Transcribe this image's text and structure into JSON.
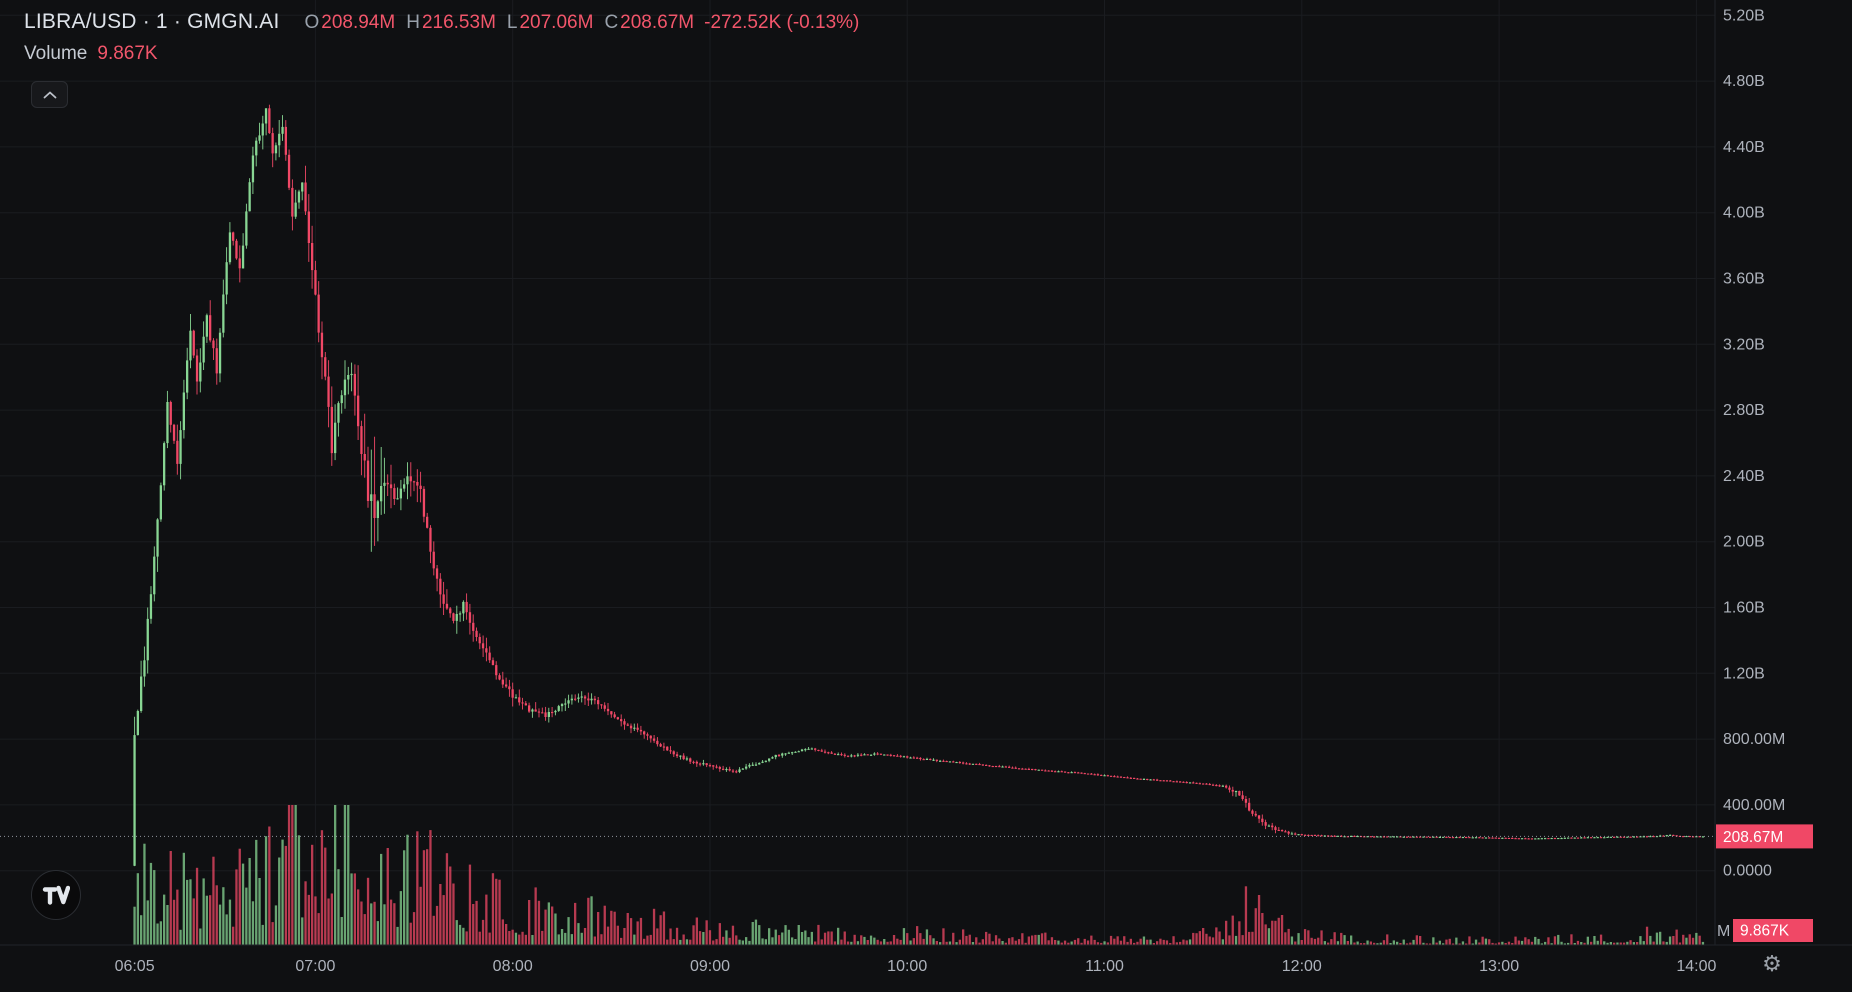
{
  "header": {
    "title": "LIBRA/USD · 1 · GMGN.AI",
    "o_label": "O",
    "o_value": "208.94M",
    "h_label": "H",
    "h_value": "216.53M",
    "l_label": "L",
    "l_value": "207.06M",
    "c_label": "C",
    "c_value": "208.67M",
    "change": "-272.52K (-0.13%)",
    "volume_label": "Volume",
    "volume_value": "9.867K"
  },
  "axis": {
    "price_label": "208.67M",
    "volume_label": "9.867K",
    "volume_unit": "M"
  },
  "icons": {
    "settings": "⚙"
  },
  "colors": {
    "up": "#88d693",
    "down": "#f04866",
    "red_text": "#f2566b",
    "bg": "#0f1012",
    "grid": "#1a1c20",
    "axis_text": "#aeb3bc",
    "separator": "#212429",
    "last_price_line": "#a8adb6",
    "label_text": "#ffffff"
  },
  "chart_data": {
    "type": "candlestick",
    "title": "LIBRA/USD 1-minute market cap candlestick chart with volume (GMGN.AI)",
    "interval": "1",
    "current_ohlc": {
      "open_m": 208.94,
      "high_m": 216.53,
      "low_m": 207.06,
      "close_m": 208.67,
      "change": "-272.52K",
      "change_pct": "-0.13%"
    },
    "current_volume": "9.867K",
    "y_ticks": [
      [
        "5.20B",
        5200
      ],
      [
        "4.80B",
        4800
      ],
      [
        "4.40B",
        4400
      ],
      [
        "4.00B",
        4000
      ],
      [
        "3.60B",
        3600
      ],
      [
        "3.20B",
        3200
      ],
      [
        "2.80B",
        2800
      ],
      [
        "2.40B",
        2400
      ],
      [
        "2.00B",
        2000
      ],
      [
        "1.60B",
        1600
      ],
      [
        "1.20B",
        1200
      ],
      [
        "800.00M",
        800
      ],
      [
        "400.00M",
        400
      ],
      [
        "0.0000",
        0
      ]
    ],
    "x_ticks": [
      [
        "06:05",
        5
      ],
      [
        "07:00",
        60
      ],
      [
        "08:00",
        120
      ],
      [
        "09:00",
        180
      ],
      [
        "10:00",
        240
      ],
      [
        "11:00",
        300
      ],
      [
        "12:00",
        360
      ],
      [
        "13:00",
        420
      ],
      [
        "14:00",
        480
      ]
    ],
    "ylim_m": [
      0,
      5200
    ],
    "grid": true,
    "current_price_m": 208.67,
    "start_minute": 5,
    "end_minute": 482,
    "first_open_m": 30,
    "price_anchors": [
      [
        5,
        850
      ],
      [
        8,
        1300
      ],
      [
        12,
        2100
      ],
      [
        15,
        2850
      ],
      [
        18,
        2500
      ],
      [
        22,
        3300
      ],
      [
        24,
        2950
      ],
      [
        27,
        3350
      ],
      [
        30,
        3050
      ],
      [
        34,
        3900
      ],
      [
        37,
        3650
      ],
      [
        41,
        4350
      ],
      [
        45,
        4620
      ],
      [
        47,
        4380
      ],
      [
        50,
        4520
      ],
      [
        53,
        3980
      ],
      [
        56,
        4180
      ],
      [
        60,
        3480
      ],
      [
        63,
        2980
      ],
      [
        65,
        2560
      ],
      [
        68,
        2920
      ],
      [
        71,
        3060
      ],
      [
        74,
        2520
      ],
      [
        78,
        2120
      ],
      [
        81,
        2360
      ],
      [
        85,
        2260
      ],
      [
        88,
        2420
      ],
      [
        92,
        2320
      ],
      [
        95,
        1920
      ],
      [
        98,
        1660
      ],
      [
        102,
        1500
      ],
      [
        105,
        1610
      ],
      [
        108,
        1460
      ],
      [
        112,
        1310
      ],
      [
        116,
        1160
      ],
      [
        120,
        1060
      ],
      [
        125,
        980
      ],
      [
        130,
        940
      ],
      [
        135,
        1000
      ],
      [
        140,
        1060
      ],
      [
        145,
        1030
      ],
      [
        150,
        950
      ],
      [
        155,
        880
      ],
      [
        160,
        830
      ],
      [
        165,
        760
      ],
      [
        170,
        700
      ],
      [
        175,
        660
      ],
      [
        180,
        640
      ],
      [
        185,
        615
      ],
      [
        188,
        600
      ],
      [
        192,
        640
      ],
      [
        196,
        660
      ],
      [
        200,
        700
      ],
      [
        205,
        720
      ],
      [
        210,
        745
      ],
      [
        215,
        720
      ],
      [
        222,
        700
      ],
      [
        230,
        710
      ],
      [
        240,
        690
      ],
      [
        250,
        668
      ],
      [
        260,
        648
      ],
      [
        270,
        630
      ],
      [
        280,
        612
      ],
      [
        290,
        598
      ],
      [
        300,
        580
      ],
      [
        310,
        560
      ],
      [
        320,
        545
      ],
      [
        330,
        528
      ],
      [
        336,
        515
      ],
      [
        340,
        478
      ],
      [
        343,
        400
      ],
      [
        346,
        330
      ],
      [
        349,
        278
      ],
      [
        352,
        248
      ],
      [
        356,
        228
      ],
      [
        360,
        218
      ],
      [
        370,
        211
      ],
      [
        380,
        209
      ],
      [
        395,
        207
      ],
      [
        410,
        204
      ],
      [
        420,
        200
      ],
      [
        430,
        196
      ],
      [
        440,
        200
      ],
      [
        450,
        204
      ],
      [
        460,
        207
      ],
      [
        468,
        211
      ],
      [
        472,
        216
      ],
      [
        476,
        210
      ],
      [
        482,
        208.67
      ]
    ],
    "range_anchors": [
      [
        5,
        250
      ],
      [
        8,
        260
      ],
      [
        15,
        220
      ],
      [
        25,
        200
      ],
      [
        35,
        180
      ],
      [
        45,
        170
      ],
      [
        55,
        200
      ],
      [
        60,
        260
      ],
      [
        65,
        330
      ],
      [
        70,
        220
      ],
      [
        78,
        700
      ],
      [
        85,
        200
      ],
      [
        95,
        230
      ],
      [
        105,
        150
      ],
      [
        120,
        110
      ],
      [
        135,
        90
      ],
      [
        150,
        70
      ],
      [
        165,
        55
      ],
      [
        180,
        40
      ],
      [
        200,
        30
      ],
      [
        220,
        25
      ],
      [
        240,
        20
      ],
      [
        260,
        16
      ],
      [
        280,
        14
      ],
      [
        300,
        12
      ],
      [
        320,
        10
      ],
      [
        336,
        14
      ],
      [
        341,
        90
      ],
      [
        346,
        70
      ],
      [
        352,
        40
      ],
      [
        360,
        12
      ],
      [
        380,
        7
      ],
      [
        400,
        5
      ],
      [
        420,
        5
      ],
      [
        440,
        5
      ],
      [
        460,
        5
      ],
      [
        470,
        12
      ],
      [
        476,
        8
      ],
      [
        482,
        6
      ]
    ],
    "volume_anchors": [
      [
        5,
        0.55
      ],
      [
        10,
        0.5
      ],
      [
        15,
        0.45
      ],
      [
        20,
        0.42
      ],
      [
        28,
        0.45
      ],
      [
        36,
        0.5
      ],
      [
        44,
        0.5
      ],
      [
        50,
        0.6
      ],
      [
        53,
        1.0
      ],
      [
        57,
        0.6
      ],
      [
        62,
        0.7
      ],
      [
        66,
        0.75
      ],
      [
        72,
        0.85
      ],
      [
        76,
        0.6
      ],
      [
        82,
        0.5
      ],
      [
        90,
        0.5
      ],
      [
        96,
        0.55
      ],
      [
        104,
        0.4
      ],
      [
        112,
        0.35
      ],
      [
        120,
        0.3
      ],
      [
        130,
        0.26
      ],
      [
        140,
        0.24
      ],
      [
        152,
        0.2
      ],
      [
        164,
        0.16
      ],
      [
        176,
        0.13
      ],
      [
        190,
        0.12
      ],
      [
        205,
        0.1
      ],
      [
        220,
        0.09
      ],
      [
        240,
        0.09
      ],
      [
        260,
        0.07
      ],
      [
        280,
        0.06
      ],
      [
        300,
        0.06
      ],
      [
        320,
        0.05
      ],
      [
        338,
        0.12
      ],
      [
        343,
        0.3
      ],
      [
        350,
        0.18
      ],
      [
        358,
        0.1
      ],
      [
        370,
        0.06
      ],
      [
        385,
        0.05
      ],
      [
        400,
        0.04
      ],
      [
        415,
        0.04
      ],
      [
        430,
        0.04
      ],
      [
        445,
        0.05
      ],
      [
        458,
        0.05
      ],
      [
        468,
        0.1
      ],
      [
        474,
        0.07
      ],
      [
        482,
        0.06
      ]
    ]
  }
}
